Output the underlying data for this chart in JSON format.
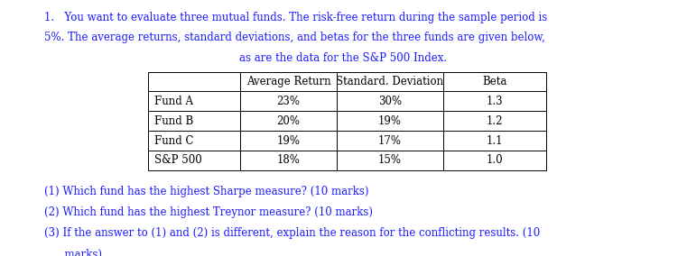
{
  "title_line1": "1.   You want to evaluate three mutual funds. The risk-free return during the sample period is",
  "title_line2": "5%. The average returns, standard deviations, and betas for the three funds are given below,",
  "title_line3": "as are the data for the S&P 500 Index.",
  "table_headers": [
    "",
    "Average Return",
    "Standard. Deviation",
    "Beta"
  ],
  "table_rows": [
    [
      "Fund A",
      "23%",
      "30%",
      "1.3"
    ],
    [
      "Fund B",
      "20%",
      "19%",
      "1.2"
    ],
    [
      "Fund C",
      "19%",
      "17%",
      "1.1"
    ],
    [
      "S&P 500",
      "18%",
      "15%",
      "1.0"
    ]
  ],
  "questions": [
    "(1) Which fund has the highest Sharpe measure? (10 marks)",
    "(2) Which fund has the highest Treynor measure? (10 marks)",
    "(3) If the answer to (1) and (2) is different, explain the reason for the conflicting results. (10",
    "      marks)"
  ],
  "text_color": "#1a1aff",
  "table_text_color": "#000000",
  "background_color": "#ffffff",
  "font_size": 8.5,
  "table_font_size": 8.5
}
